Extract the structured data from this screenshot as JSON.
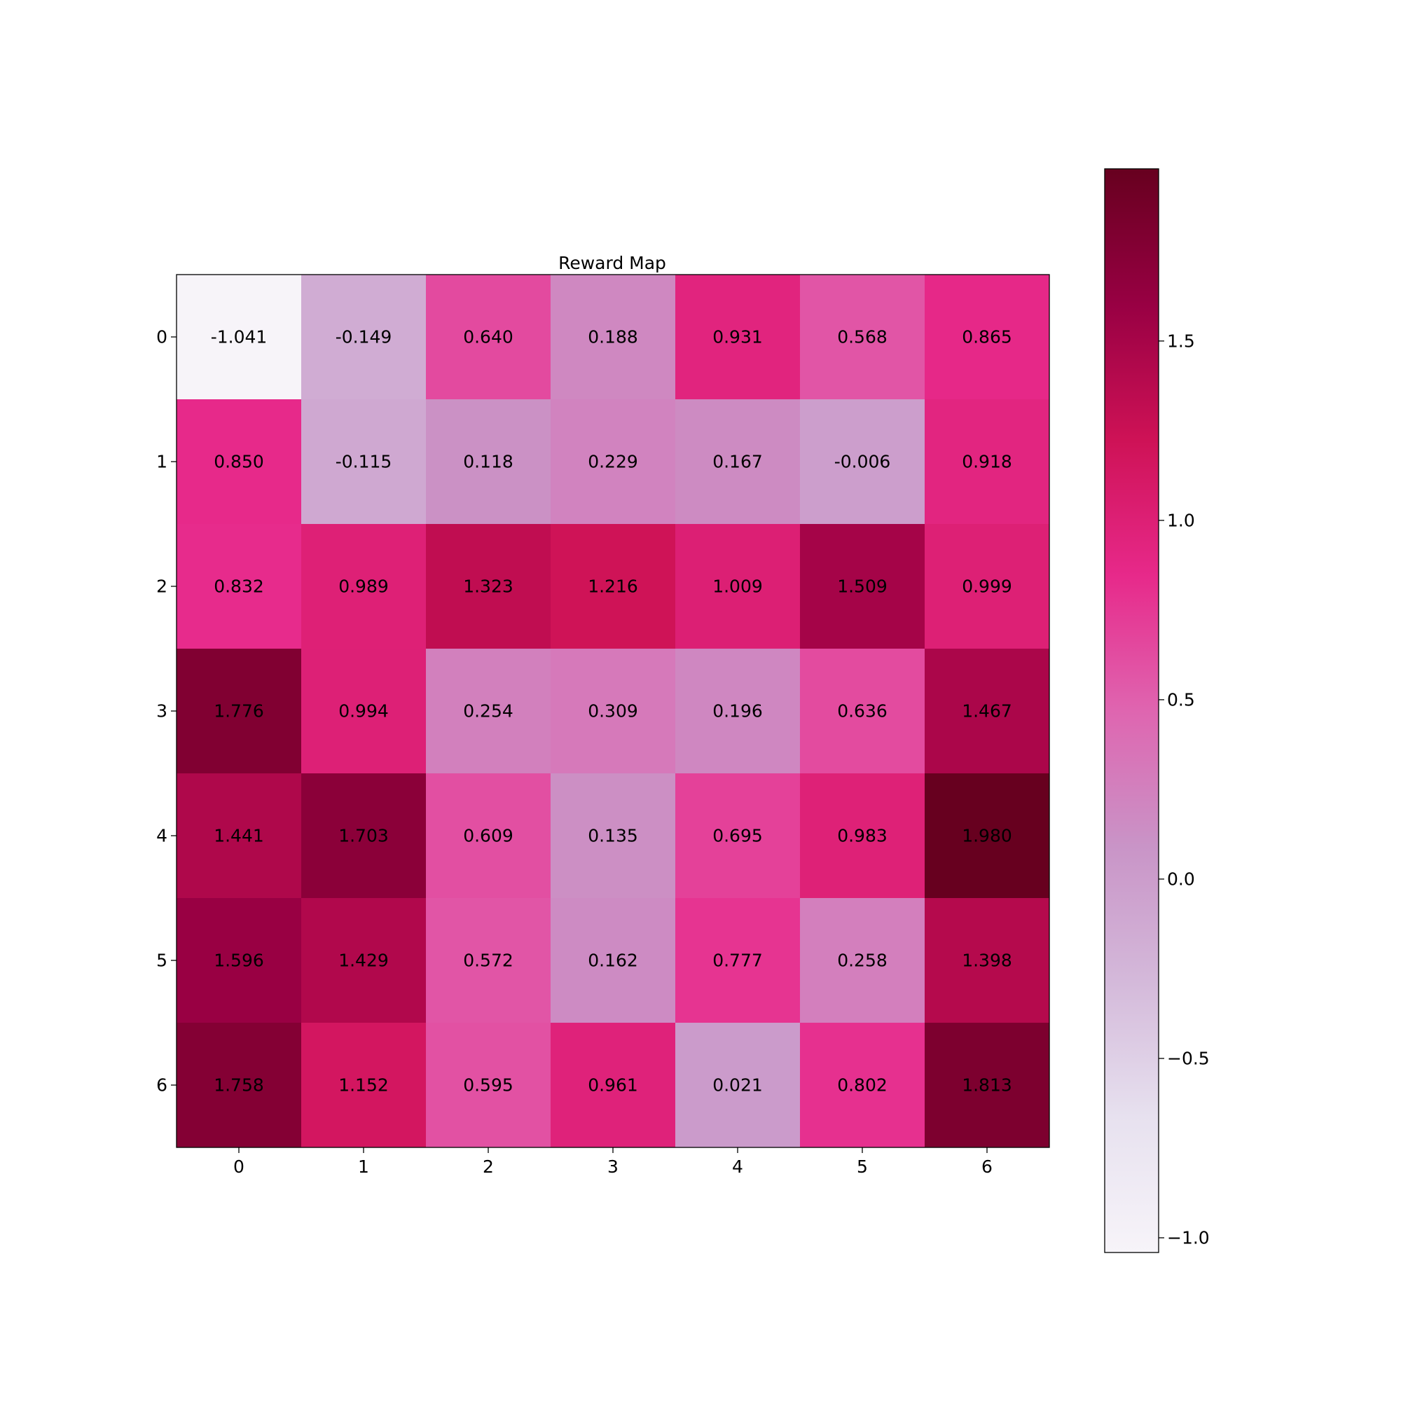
{
  "chart_data": {
    "type": "heatmap",
    "title": "Reward Map",
    "xlabel": "",
    "ylabel": "",
    "x_ticks": [
      "0",
      "1",
      "2",
      "3",
      "4",
      "5",
      "6"
    ],
    "y_ticks": [
      "0",
      "1",
      "2",
      "3",
      "4",
      "5",
      "6"
    ],
    "values": [
      [
        -1.041,
        -0.149,
        0.64,
        0.188,
        0.931,
        0.568,
        0.865
      ],
      [
        0.85,
        -0.115,
        0.118,
        0.229,
        0.167,
        -0.006,
        0.918
      ],
      [
        0.832,
        0.989,
        1.323,
        1.216,
        1.009,
        1.509,
        0.999
      ],
      [
        1.776,
        0.994,
        0.254,
        0.309,
        0.196,
        0.636,
        1.467
      ],
      [
        1.441,
        1.703,
        0.609,
        0.135,
        0.695,
        0.983,
        1.98
      ],
      [
        1.596,
        1.429,
        0.572,
        0.162,
        0.777,
        0.258,
        1.398
      ],
      [
        1.758,
        1.152,
        0.595,
        0.961,
        0.021,
        0.802,
        1.813
      ]
    ],
    "labels": [
      [
        "-1.041",
        "-0.149",
        "0.640",
        "0.188",
        "0.931",
        "0.568",
        "0.865"
      ],
      [
        "0.850",
        "-0.115",
        "0.118",
        "0.229",
        "0.167",
        "-0.006",
        "0.918"
      ],
      [
        "0.832",
        "0.989",
        "1.323",
        "1.216",
        "1.009",
        "1.509",
        "0.999"
      ],
      [
        "1.776",
        "0.994",
        "0.254",
        "0.309",
        "0.196",
        "0.636",
        "1.467"
      ],
      [
        "1.441",
        "1.703",
        "0.609",
        "0.135",
        "0.695",
        "0.983",
        "1.980"
      ],
      [
        "1.596",
        "1.429",
        "0.572",
        "0.162",
        "0.777",
        "0.258",
        "1.398"
      ],
      [
        "1.758",
        "1.152",
        "0.595",
        "0.961",
        "0.021",
        "0.802",
        "1.813"
      ]
    ],
    "colormap": "PuRd",
    "color_range": [
      -1.041,
      1.98
    ],
    "colorbar": {
      "ticks": [
        1.5,
        1.0,
        0.5,
        0.0,
        -0.5,
        -1.0
      ],
      "tick_labels": [
        "1.5",
        "1.0",
        "0.5",
        "0.0",
        "−0.5",
        "−1.0"
      ]
    },
    "grid": false,
    "legend": "colorbar-right"
  }
}
